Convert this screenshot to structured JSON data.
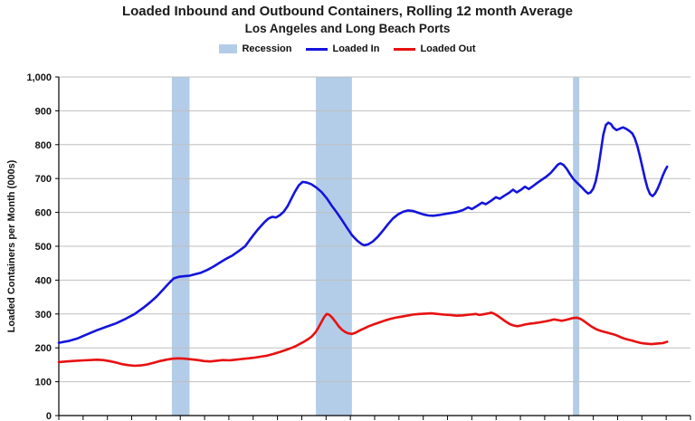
{
  "title": {
    "line1": "Loaded Inbound and Outbound Containers, Rolling 12 month Average",
    "line2": "Los Angeles and Long Beach Ports"
  },
  "legend": {
    "recession_label": "Recession",
    "loaded_in_label": "Loaded In",
    "loaded_out_label": "Loaded Out"
  },
  "chart_data": {
    "type": "line",
    "title": "Loaded Inbound and Outbound Containers, Rolling 12 month Average — Los Angeles and Long Beach Ports",
    "ylabel": "Loaded Containers per Month (000s)",
    "ylim": [
      0,
      1000
    ],
    "ytick_step": 100,
    "ytick_labels": [
      "0",
      "100",
      "200",
      "300",
      "400",
      "500",
      "600",
      "700",
      "800",
      "900",
      "1,000"
    ],
    "x_range": [
      0,
      100
    ],
    "xtick_count": 26,
    "x_axis_labels_visible": false,
    "grid": "horizontal",
    "legend_position": "top-center",
    "colors": {
      "loaded_in": "#1414dd",
      "loaded_out": "#e81010",
      "recession": "#b3cde8",
      "grid": "#bfbfbf",
      "axis": "#000000"
    },
    "recession_bands": [
      [
        17.9,
        20.7
      ],
      [
        40.7,
        46.4
      ],
      [
        81.4,
        82.4
      ]
    ],
    "series": [
      {
        "name": "Loaded In",
        "color": "#1414dd",
        "points": [
          [
            0,
            215
          ],
          [
            1.5,
            220
          ],
          [
            3,
            228
          ],
          [
            4.5,
            240
          ],
          [
            6,
            252
          ],
          [
            7.5,
            262
          ],
          [
            9,
            272
          ],
          [
            10.5,
            285
          ],
          [
            12,
            300
          ],
          [
            13.5,
            320
          ],
          [
            14.5,
            335
          ],
          [
            15.5,
            352
          ],
          [
            16.5,
            372
          ],
          [
            17.5,
            392
          ],
          [
            18.2,
            405
          ],
          [
            19,
            410
          ],
          [
            20,
            412
          ],
          [
            20.7,
            413
          ],
          [
            21.5,
            417
          ],
          [
            22.5,
            422
          ],
          [
            23.5,
            430
          ],
          [
            24.5,
            440
          ],
          [
            25.5,
            452
          ],
          [
            26.5,
            463
          ],
          [
            27.5,
            473
          ],
          [
            28.5,
            486
          ],
          [
            29.5,
            500
          ],
          [
            30.2,
            518
          ],
          [
            30.8,
            533
          ],
          [
            31.4,
            547
          ],
          [
            32,
            560
          ],
          [
            32.6,
            572
          ],
          [
            33.2,
            582
          ],
          [
            33.8,
            587
          ],
          [
            34.4,
            585
          ],
          [
            35,
            592
          ],
          [
            35.6,
            602
          ],
          [
            36.2,
            618
          ],
          [
            36.8,
            640
          ],
          [
            37.4,
            662
          ],
          [
            38,
            680
          ],
          [
            38.6,
            690
          ],
          [
            39.3,
            688
          ],
          [
            40,
            683
          ],
          [
            40.8,
            673
          ],
          [
            41.6,
            660
          ],
          [
            42.4,
            642
          ],
          [
            43.2,
            620
          ],
          [
            44,
            600
          ],
          [
            44.8,
            578
          ],
          [
            45.6,
            555
          ],
          [
            46.4,
            533
          ],
          [
            47.2,
            517
          ],
          [
            47.9,
            507
          ],
          [
            48.4,
            503
          ],
          [
            49,
            506
          ],
          [
            49.7,
            514
          ],
          [
            50.5,
            528
          ],
          [
            51.3,
            546
          ],
          [
            52.1,
            565
          ],
          [
            52.9,
            582
          ],
          [
            53.7,
            594
          ],
          [
            54.5,
            602
          ],
          [
            55.3,
            606
          ],
          [
            56.1,
            604
          ],
          [
            56.9,
            599
          ],
          [
            57.7,
            594
          ],
          [
            58.5,
            591
          ],
          [
            59.3,
            590
          ],
          [
            60.1,
            592
          ],
          [
            61,
            595
          ],
          [
            62,
            598
          ],
          [
            63,
            601
          ],
          [
            64,
            607
          ],
          [
            64.8,
            615
          ],
          [
            65.4,
            610
          ],
          [
            66.2,
            619
          ],
          [
            67,
            629
          ],
          [
            67.6,
            624
          ],
          [
            68.4,
            634
          ],
          [
            69.2,
            645
          ],
          [
            69.8,
            640
          ],
          [
            70.5,
            649
          ],
          [
            71.3,
            658
          ],
          [
            71.9,
            667
          ],
          [
            72.5,
            659
          ],
          [
            73.2,
            667
          ],
          [
            73.8,
            676
          ],
          [
            74.4,
            669
          ],
          [
            75.1,
            678
          ],
          [
            75.8,
            688
          ],
          [
            76.5,
            697
          ],
          [
            77.2,
            706
          ],
          [
            77.9,
            717
          ],
          [
            78.5,
            730
          ],
          [
            79,
            741
          ],
          [
            79.4,
            745
          ],
          [
            79.9,
            740
          ],
          [
            80.4,
            729
          ],
          [
            80.9,
            714
          ],
          [
            81.4,
            700
          ],
          [
            81.9,
            690
          ],
          [
            82.4,
            681
          ],
          [
            82.9,
            672
          ],
          [
            83.4,
            662
          ],
          [
            83.8,
            656
          ],
          [
            84.2,
            659
          ],
          [
            84.6,
            670
          ],
          [
            85,
            692
          ],
          [
            85.4,
            730
          ],
          [
            85.8,
            780
          ],
          [
            86.2,
            830
          ],
          [
            86.6,
            858
          ],
          [
            87,
            865
          ],
          [
            87.4,
            861
          ],
          [
            87.8,
            850
          ],
          [
            88.3,
            843
          ],
          [
            88.8,
            847
          ],
          [
            89.3,
            851
          ],
          [
            89.8,
            847
          ],
          [
            90.3,
            841
          ],
          [
            90.8,
            833
          ],
          [
            91.2,
            818
          ],
          [
            91.6,
            795
          ],
          [
            92,
            765
          ],
          [
            92.4,
            732
          ],
          [
            92.8,
            700
          ],
          [
            93.2,
            672
          ],
          [
            93.6,
            654
          ],
          [
            94,
            648
          ],
          [
            94.4,
            656
          ],
          [
            94.8,
            670
          ],
          [
            95.2,
            688
          ],
          [
            95.6,
            708
          ],
          [
            96,
            725
          ],
          [
            96.3,
            735
          ]
        ]
      },
      {
        "name": "Loaded Out",
        "color": "#e81010",
        "points": [
          [
            0,
            158
          ],
          [
            2,
            161
          ],
          [
            4,
            163
          ],
          [
            6,
            165
          ],
          [
            7,
            164
          ],
          [
            8,
            161
          ],
          [
            9,
            157
          ],
          [
            10,
            152
          ],
          [
            11,
            149
          ],
          [
            12,
            147
          ],
          [
            13,
            148
          ],
          [
            14,
            151
          ],
          [
            15,
            156
          ],
          [
            16,
            161
          ],
          [
            17,
            165
          ],
          [
            18,
            168
          ],
          [
            19,
            169
          ],
          [
            20,
            168
          ],
          [
            21,
            166
          ],
          [
            22,
            164
          ],
          [
            23,
            161
          ],
          [
            24,
            160
          ],
          [
            25,
            162
          ],
          [
            26,
            164
          ],
          [
            27,
            163
          ],
          [
            28,
            165
          ],
          [
            29,
            167
          ],
          [
            30,
            169
          ],
          [
            31,
            171
          ],
          [
            32,
            174
          ],
          [
            33,
            177
          ],
          [
            34,
            182
          ],
          [
            35,
            188
          ],
          [
            36,
            194
          ],
          [
            37,
            201
          ],
          [
            37.6,
            206
          ],
          [
            38.2,
            212
          ],
          [
            38.8,
            218
          ],
          [
            39.4,
            225
          ],
          [
            40,
            233
          ],
          [
            40.6,
            245
          ],
          [
            41.1,
            260
          ],
          [
            41.6,
            277
          ],
          [
            42,
            291
          ],
          [
            42.4,
            300
          ],
          [
            42.8,
            298
          ],
          [
            43.3,
            289
          ],
          [
            43.8,
            277
          ],
          [
            44.3,
            264
          ],
          [
            44.8,
            254
          ],
          [
            45.3,
            247
          ],
          [
            45.8,
            243
          ],
          [
            46.4,
            241
          ],
          [
            47,
            245
          ],
          [
            47.6,
            251
          ],
          [
            48.3,
            257
          ],
          [
            49,
            263
          ],
          [
            49.8,
            269
          ],
          [
            50.6,
            274
          ],
          [
            51.5,
            280
          ],
          [
            52.4,
            285
          ],
          [
            53.3,
            289
          ],
          [
            54.2,
            292
          ],
          [
            55.1,
            295
          ],
          [
            56,
            298
          ],
          [
            57,
            300
          ],
          [
            58,
            301
          ],
          [
            59,
            302
          ],
          [
            60,
            300
          ],
          [
            61,
            298
          ],
          [
            62,
            297
          ],
          [
            63,
            295
          ],
          [
            64,
            296
          ],
          [
            65,
            298
          ],
          [
            66,
            300
          ],
          [
            66.6,
            297
          ],
          [
            67.2,
            299
          ],
          [
            68,
            302
          ],
          [
            68.5,
            304
          ],
          [
            69,
            300
          ],
          [
            69.6,
            293
          ],
          [
            70.2,
            285
          ],
          [
            70.8,
            277
          ],
          [
            71.4,
            270
          ],
          [
            72,
            266
          ],
          [
            72.6,
            264
          ],
          [
            73.2,
            266
          ],
          [
            73.8,
            269
          ],
          [
            74.5,
            271
          ],
          [
            75.3,
            273
          ],
          [
            76.1,
            275
          ],
          [
            77,
            278
          ],
          [
            77.8,
            281
          ],
          [
            78.4,
            284
          ],
          [
            79,
            282
          ],
          [
            79.6,
            280
          ],
          [
            80.2,
            282
          ],
          [
            80.8,
            285
          ],
          [
            81.4,
            288
          ],
          [
            82,
            289
          ],
          [
            82.5,
            286
          ],
          [
            83,
            281
          ],
          [
            83.5,
            274
          ],
          [
            84,
            267
          ],
          [
            84.5,
            261
          ],
          [
            85,
            256
          ],
          [
            85.5,
            252
          ],
          [
            86,
            249
          ],
          [
            86.6,
            246
          ],
          [
            87.2,
            243
          ],
          [
            87.8,
            240
          ],
          [
            88.4,
            236
          ],
          [
            89,
            231
          ],
          [
            89.6,
            227
          ],
          [
            90.2,
            224
          ],
          [
            90.8,
            221
          ],
          [
            91.4,
            218
          ],
          [
            92,
            215
          ],
          [
            92.6,
            213
          ],
          [
            93.2,
            212
          ],
          [
            93.8,
            211
          ],
          [
            94.4,
            212
          ],
          [
            95,
            213
          ],
          [
            95.6,
            214
          ],
          [
            96.3,
            218
          ]
        ]
      }
    ]
  }
}
